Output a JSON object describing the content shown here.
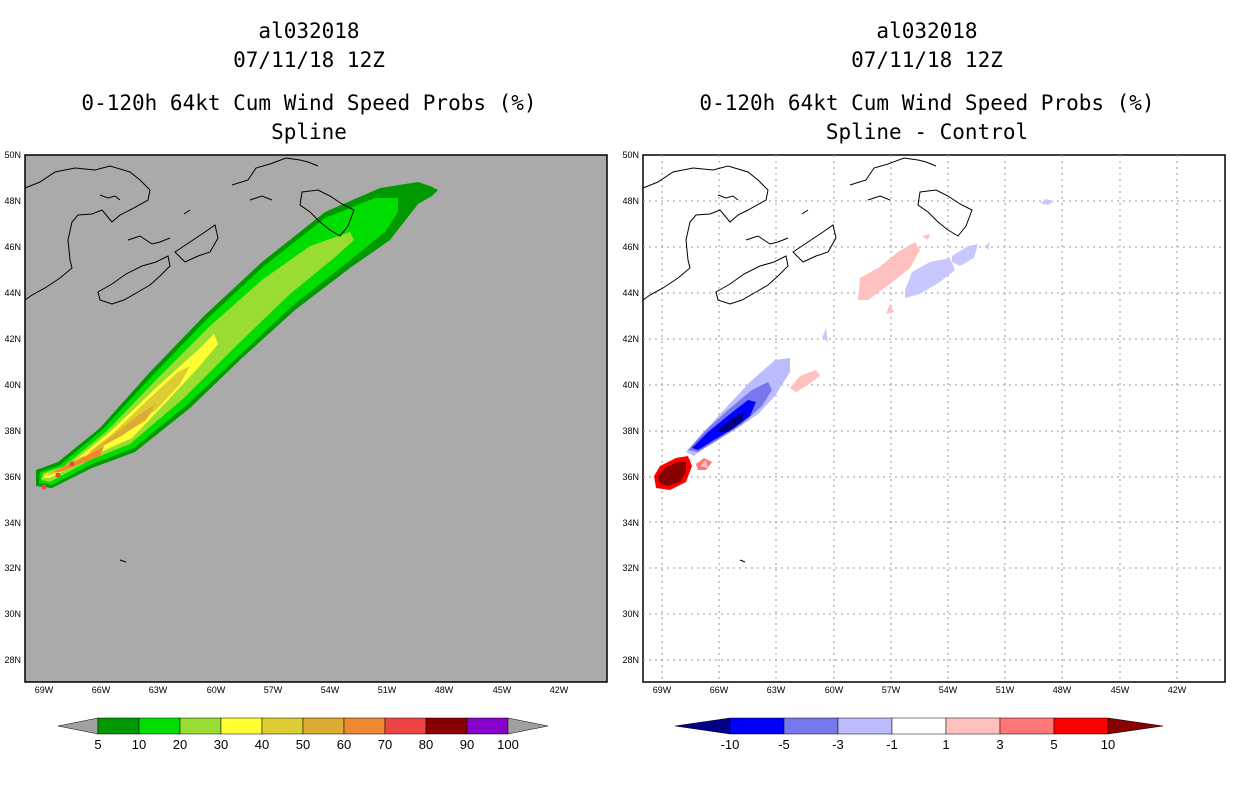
{
  "left_panel": {
    "storm_id": "al032018",
    "datetime": "07/11/18 12Z",
    "product": "0-120h 64kt Cum Wind Speed Probs (%)",
    "subtitle": "Spline",
    "background_color": "#aaaaaa",
    "colorbar": {
      "labels": [
        "5",
        "10",
        "20",
        "30",
        "40",
        "50",
        "60",
        "70",
        "80",
        "90",
        "100"
      ],
      "colors": [
        "#009900",
        "#00dd00",
        "#99dd33",
        "#ffff33",
        "#ddcc33",
        "#ddaa33",
        "#ee8833",
        "#ee4444",
        "#880000",
        "#8800cc"
      ],
      "end_color": "#a0a0a0"
    }
  },
  "right_panel": {
    "storm_id": "al032018",
    "datetime": "07/11/18 12Z",
    "product": "0-120h 64kt Cum Wind Speed Probs (%)",
    "subtitle": "Spline - Control",
    "background_color": "#ffffff",
    "colorbar": {
      "labels": [
        "-10",
        "-5",
        "-3",
        "-1",
        "1",
        "3",
        "5",
        "10"
      ],
      "colors": [
        "#0000ff",
        "#7777ee",
        "#bbbbff",
        "#ffffff",
        "#ffc0c0",
        "#ff7777",
        "#ff0000"
      ],
      "left_end_color": "#000088",
      "right_end_color": "#880000"
    }
  },
  "axes": {
    "lat_labels": [
      "50N",
      "48N",
      "46N",
      "44N",
      "42N",
      "40N",
      "38N",
      "36N",
      "34N",
      "32N",
      "30N",
      "28N"
    ],
    "lon_labels": [
      "69W",
      "66W",
      "63W",
      "60W",
      "57W",
      "54W",
      "51W",
      "48W",
      "45W",
      "42W"
    ]
  }
}
